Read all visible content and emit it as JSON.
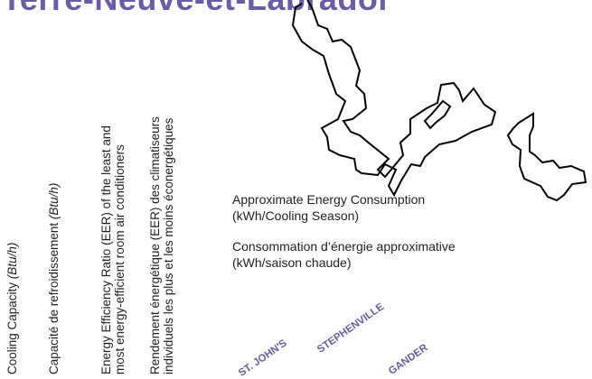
{
  "page": {
    "title": "Terre-Neuve-et-Labrador",
    "column_headers": {
      "cooling_capacity_en_prefix": "Cooling Capacity ",
      "cooling_capacity_en_unit": "(Btu/h)",
      "cooling_capacity_fr_prefix": "Capacité de refroidissement ",
      "cooling_capacity_fr_unit": "(Btu/h)",
      "eer_en_line1": "Energy Efficiency Ratio (EER) of the least and",
      "eer_en_line2": "most energy-efficient room air conditioners",
      "eer_fr_line1": "Rendement énergétique (EER) des climatiseurs",
      "eer_fr_line2": "individuels les plus et les moins éconergétiques"
    },
    "energy_labels": {
      "en_line1": "Approximate Energy Consumption",
      "en_line2": "(kWh/Cooling Season)",
      "fr_line1": "Consommation d’énergie approximative",
      "fr_line2": "(kWh/saison chaude)"
    },
    "cities": [
      "ST. JOHN'S",
      "STEPHENVILLE",
      "GANDER"
    ],
    "colors": {
      "title": "#6b5ba8",
      "city": "#6b5ba8",
      "text": "#231f20",
      "map_outline": "#000000"
    },
    "map_icon": "newfoundland-labrador-outline"
  }
}
